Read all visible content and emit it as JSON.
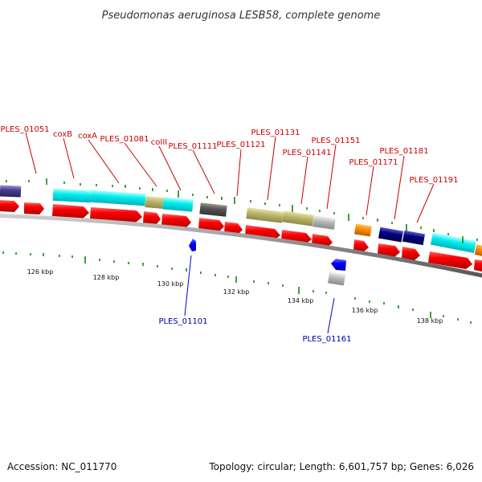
{
  "title": "Pseudomonas aeruginosa LESB58, complete genome",
  "footer": {
    "accession": "Accession: NC_011770",
    "summary": "Topology: circular; Length: 6,601,757 bp; Genes: 6,026"
  },
  "colors": {
    "cds": "#e60000",
    "cyan_feature": "#00e5ee",
    "khaki_feature": "#bdb76b",
    "dark_gray": "#555555",
    "light_gray": "#bbbbbb",
    "orange": "#ff8c00",
    "navy": "#000080",
    "slate": "#483d8b",
    "blue_gene": "#0000ff",
    "backbone": "#888888",
    "tick": "#008000",
    "label_red": "#cc0000",
    "label_blue": "#000099"
  },
  "position_ticks": [
    "126 kbp",
    "128 kbp",
    "130 kbp",
    "132 kbp",
    "134 kbp",
    "136 kbp",
    "138 kbp"
  ],
  "labels_top": [
    "PLES_01051",
    "coxB",
    "coxA",
    "PLES_01081",
    "coIII",
    "PLES_01111",
    "PLES_01121",
    "PLES_01131",
    "PLES_01141",
    "PLES_01151",
    "PLES_01171",
    "PLES_01181",
    "PLES_01191"
  ],
  "labels_bottom": [
    "PLES_01101",
    "PLES_01161"
  ]
}
